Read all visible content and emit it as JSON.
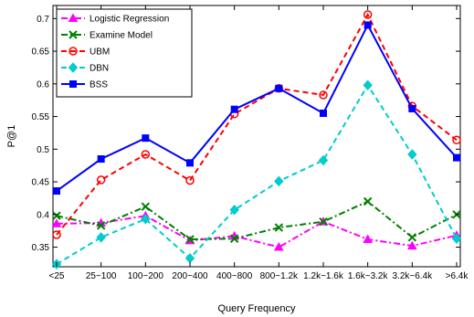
{
  "chart_data": {
    "type": "line",
    "xlabel": "Query Frequency",
    "ylabel": "P@1",
    "categories": [
      "<25",
      "25~100",
      "100~200",
      "200~400",
      "400~800",
      "800~1.2k",
      "1.2k~1.6k",
      "1.6k~3.2k",
      "3.2k~6.4k",
      ">6.4k"
    ],
    "ylim": [
      0.32,
      0.72
    ],
    "yticks": [
      "0.35",
      "0.4",
      "0.45",
      "0.5",
      "0.55",
      "0.6",
      "0.65",
      "0.7"
    ],
    "grid": false,
    "legend_position": "top-left",
    "series": [
      {
        "name": "Logistic Regression",
        "color": "#ff00ff",
        "dash": "dashdot",
        "marker": "triangle",
        "values": [
          0.386,
          0.387,
          0.398,
          0.36,
          0.367,
          0.35,
          0.389,
          0.362,
          0.352,
          0.368
        ]
      },
      {
        "name": "Examine Model",
        "color": "#008000",
        "dash": "dashdot",
        "marker": "x",
        "values": [
          0.398,
          0.383,
          0.412,
          0.362,
          0.363,
          0.38,
          0.389,
          0.42,
          0.365,
          0.4
        ]
      },
      {
        "name": "UBM",
        "color": "#ff0000",
        "dash": "dashed",
        "marker": "circle",
        "values": [
          0.369,
          0.453,
          0.492,
          0.452,
          0.554,
          0.593,
          0.583,
          0.706,
          0.566,
          0.514
        ]
      },
      {
        "name": "DBN",
        "color": "#00cccc",
        "dash": "dashed",
        "marker": "diamond",
        "values": [
          0.324,
          0.365,
          0.393,
          0.333,
          0.407,
          0.451,
          0.483,
          0.598,
          0.492,
          0.363
        ]
      },
      {
        "name": "BSS",
        "color": "#0000ff",
        "dash": "solid",
        "marker": "square",
        "values": [
          0.436,
          0.485,
          0.517,
          0.479,
          0.561,
          0.593,
          0.555,
          0.69,
          0.562,
          0.487
        ]
      }
    ]
  }
}
